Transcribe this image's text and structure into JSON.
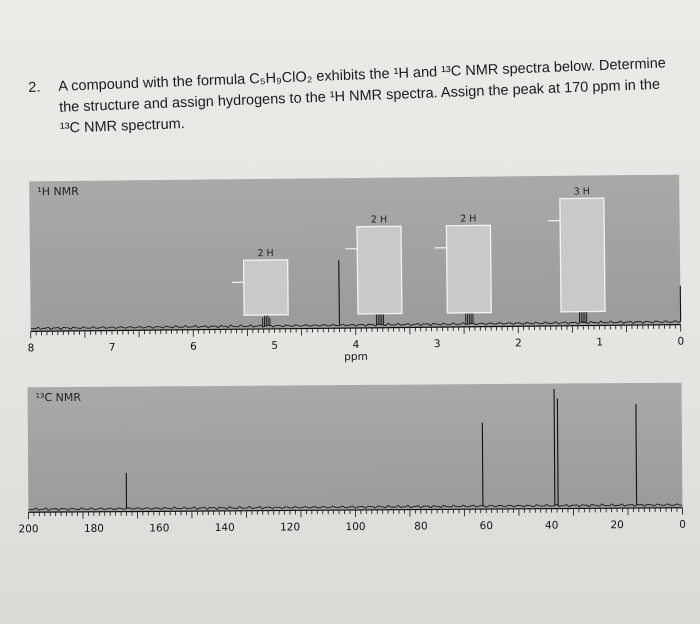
{
  "question": {
    "number": "2.",
    "line1": "A compound with the formula C₅H₉ClO₂ exhibits the ¹H and ¹³C NMR spectra below. Determine",
    "line2": "the structure and assign hydrogens to the ¹H NMR spectra. Assign the peak at 170 ppm in the",
    "line3": "¹³C NMR spectrum."
  },
  "chart_data": [
    {
      "type": "line",
      "title": "¹H NMR",
      "xlabel": "ppm",
      "xlim": [
        8,
        0
      ],
      "ticks": [
        8,
        7,
        6,
        5,
        4,
        3,
        2,
        1,
        0
      ],
      "peaks": [
        {
          "ppm": 5.1,
          "height": 0.3,
          "integration": "2 H",
          "multiplet": true
        },
        {
          "ppm": 4.2,
          "height": 0.45,
          "integration": "",
          "multiplet": false
        },
        {
          "ppm": 3.7,
          "height": 0.55,
          "integration": "2 H",
          "multiplet": true
        },
        {
          "ppm": 2.6,
          "height": 0.55,
          "integration": "2 H",
          "multiplet": true
        },
        {
          "ppm": 1.2,
          "height": 0.75,
          "integration": "3 H",
          "multiplet": true
        },
        {
          "ppm": 0.0,
          "height": 0.25,
          "integration": "",
          "multiplet": false
        }
      ]
    },
    {
      "type": "line",
      "title": "¹³C NMR",
      "xlim": [
        200,
        0
      ],
      "ticks": [
        200,
        180,
        160,
        140,
        120,
        100,
        80,
        60,
        40,
        20,
        0
      ],
      "peaks": [
        {
          "ppm": 170,
          "height": 0.3
        },
        {
          "ppm": 61,
          "height": 0.7
        },
        {
          "ppm": 39,
          "height": 0.98
        },
        {
          "ppm": 38,
          "height": 0.9
        },
        {
          "ppm": 14,
          "height": 0.85
        }
      ]
    }
  ]
}
